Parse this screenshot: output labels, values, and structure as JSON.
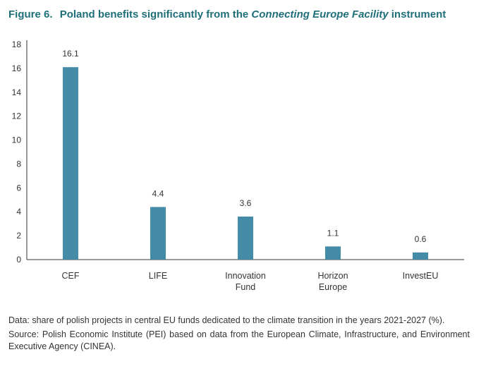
{
  "figure": {
    "number": "Figure 6.",
    "title_before": "Poland benefits significantly from the",
    "title_italic": "Connecting Europe Facility",
    "title_after": "instrument",
    "title_color": "#1f6f7a"
  },
  "chart_data": {
    "type": "bar",
    "categories": [
      [
        "CEF"
      ],
      [
        "LIFE"
      ],
      [
        "Innovation",
        "Fund"
      ],
      [
        "Horizon",
        "Europe"
      ],
      [
        "InvestEU"
      ]
    ],
    "values": [
      16.1,
      4.4,
      3.6,
      1.1,
      0.6
    ],
    "value_labels": [
      "16.1",
      "4.4",
      "3.6",
      "1.1",
      "0.6"
    ],
    "ylim": [
      0,
      18
    ],
    "yticks": [
      0,
      2,
      4,
      6,
      8,
      10,
      12,
      14,
      16,
      18
    ],
    "bar_color": "#438ba6",
    "grid": false,
    "xlabel": "",
    "ylabel": ""
  },
  "notes": {
    "data": "Data: share of polish projects in central EU funds dedicated to the climate transition in the years 2021-2027 (%).",
    "source": "Source: Polish Economic Institute (PEI) based on data from the European Climate, Infrastructure, and Environment Executive Agency (CINEA)."
  }
}
